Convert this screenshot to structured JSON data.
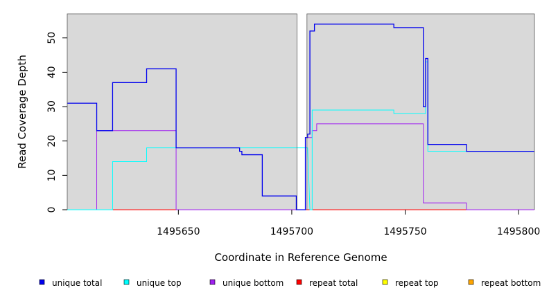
{
  "chart_data": {
    "type": "line",
    "title": "",
    "xlabel": "Coordinate in Reference Genome",
    "ylabel": "Read Coverage Depth",
    "xlim": [
      1495601,
      1495807
    ],
    "ylim": [
      0,
      57
    ],
    "x_ticks": [
      1495650,
      1495700,
      1495750,
      1495800
    ],
    "x_tick_labels": [
      "1495650",
      "1495700",
      "1495750",
      "1495800"
    ],
    "y_ticks": [
      0,
      10,
      20,
      30,
      40,
      50
    ],
    "y_tick_labels": [
      "0",
      "10",
      "20",
      "30",
      "40",
      "50"
    ],
    "grid": false,
    "legend_position": "bottom",
    "gaps": [
      [
        1495702,
        1495707
      ]
    ],
    "series": [
      {
        "name": "unique total",
        "color": "#0000ee",
        "points": [
          [
            1495601,
            31
          ],
          [
            1495614,
            31
          ],
          [
            1495614,
            23
          ],
          [
            1495621,
            23
          ],
          [
            1495621,
            37
          ],
          [
            1495636,
            37
          ],
          [
            1495636,
            41
          ],
          [
            1495649,
            41
          ],
          [
            1495649,
            18
          ],
          [
            1495677,
            18
          ],
          [
            1495677,
            17
          ],
          [
            1495678,
            17
          ],
          [
            1495678,
            16
          ],
          [
            1495687,
            16
          ],
          [
            1495687,
            4
          ],
          [
            1495702,
            4
          ],
          [
            1495702,
            0
          ],
          [
            1495706,
            0
          ],
          [
            1495706,
            21
          ],
          [
            1495707,
            21
          ],
          [
            1495707,
            22
          ],
          [
            1495708,
            22
          ],
          [
            1495708,
            52
          ],
          [
            1495710,
            52
          ],
          [
            1495710,
            54
          ],
          [
            1495745,
            54
          ],
          [
            1495745,
            53
          ],
          [
            1495758,
            53
          ],
          [
            1495758,
            30
          ],
          [
            1495759,
            30
          ],
          [
            1495759,
            44
          ],
          [
            1495760,
            44
          ],
          [
            1495760,
            19
          ],
          [
            1495777,
            19
          ],
          [
            1495777,
            17
          ],
          [
            1495807,
            17
          ]
        ]
      },
      {
        "name": "unique top",
        "color": "#00ffff",
        "points": [
          [
            1495601,
            0
          ],
          [
            1495621,
            0
          ],
          [
            1495621,
            14
          ],
          [
            1495636,
            14
          ],
          [
            1495636,
            18
          ],
          [
            1495649,
            18
          ],
          [
            1495649,
            18
          ],
          [
            1495707,
            18
          ],
          [
            1495708,
            0
          ],
          [
            1495709,
            0
          ],
          [
            1495709,
            29
          ],
          [
            1495745,
            29
          ],
          [
            1495745,
            28
          ],
          [
            1495759,
            28
          ],
          [
            1495759,
            43
          ],
          [
            1495760,
            43
          ],
          [
            1495760,
            17
          ],
          [
            1495807,
            17
          ]
        ]
      },
      {
        "name": "unique bottom",
        "color": "#a020f0",
        "points": [
          [
            1495601,
            0
          ],
          [
            1495614,
            0
          ],
          [
            1495614,
            23
          ],
          [
            1495649,
            23
          ],
          [
            1495649,
            0
          ],
          [
            1495706,
            0
          ],
          [
            1495706,
            21
          ],
          [
            1495709,
            21
          ],
          [
            1495709,
            23
          ],
          [
            1495711,
            23
          ],
          [
            1495711,
            25
          ],
          [
            1495758,
            25
          ],
          [
            1495758,
            2
          ],
          [
            1495777,
            2
          ],
          [
            1495777,
            0
          ],
          [
            1495807,
            0
          ]
        ]
      },
      {
        "name": "repeat total",
        "color": "#ff0000",
        "points": [
          [
            1495601,
            0
          ],
          [
            1495807,
            0
          ]
        ]
      },
      {
        "name": "repeat top",
        "color": "#ffff00",
        "points": [
          [
            1495601,
            0
          ],
          [
            1495807,
            0
          ]
        ]
      },
      {
        "name": "repeat bottom",
        "color": "#ffa500",
        "points": [
          [
            1495601,
            0
          ],
          [
            1495807,
            0
          ]
        ]
      }
    ]
  }
}
